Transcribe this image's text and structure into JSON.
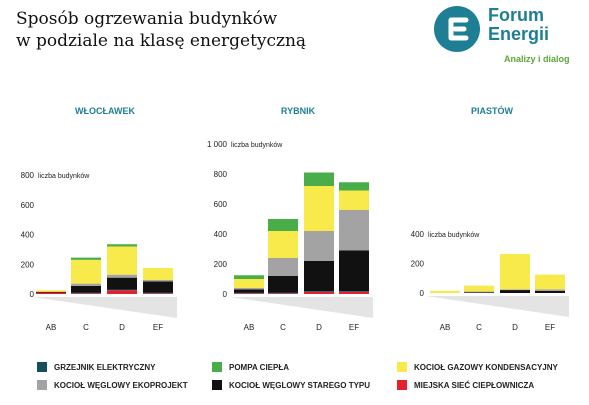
{
  "header": {
    "title_line1": "Sposób ogrzewania budynków",
    "title_line2": "w podziale na klasę energetyczną"
  },
  "logo": {
    "icon": "forum-energii-logo-icon",
    "name_line1": "Forum",
    "name_line2": "Energii",
    "tagline": "Analizy i dialog",
    "color": "#1e7f94",
    "tagline_color": "#5aa83a"
  },
  "chart_data": [
    {
      "type": "bar",
      "stacked": true,
      "title": "WŁOCŁAWEK",
      "ylabel": "liczba budynków",
      "ylim": [
        0,
        800
      ],
      "yticks": [
        0,
        200,
        400,
        600,
        800
      ],
      "ytick_labels": [
        "0",
        "200",
        "400",
        "600",
        "800"
      ],
      "categories": [
        "AB",
        "C",
        "D",
        "EF"
      ],
      "series": [
        {
          "name": "MIEJSKA SIEĆ CIEPŁOWNICZA",
          "color": "#e3202f",
          "values": [
            10,
            5,
            25,
            5
          ]
        },
        {
          "name": "GRZEJNIK ELEKTRYCZNY",
          "color": "#154f5c",
          "values": [
            0,
            5,
            5,
            5
          ]
        },
        {
          "name": "KOCIOŁ WĘGLOWY STAREGO TYPU",
          "color": "#111111",
          "values": [
            5,
            45,
            80,
            75
          ]
        },
        {
          "name": "KOCIOŁ WĘGLOWY EKOPROJEKT",
          "color": "#a3a3a3",
          "values": [
            0,
            15,
            20,
            10
          ]
        },
        {
          "name": "KOCIOŁ GAZOWY KONDENSACYJNY",
          "color": "#f7ea4a",
          "values": [
            10,
            160,
            190,
            80
          ]
        },
        {
          "name": "POMPA CIEPŁA",
          "color": "#49ae49",
          "values": [
            0,
            15,
            15,
            0
          ]
        }
      ]
    },
    {
      "type": "bar",
      "stacked": true,
      "title": "RYBNIK",
      "ylabel": "liczba budynków",
      "ylim": [
        0,
        1000
      ],
      "yticks": [
        0,
        200,
        400,
        600,
        800,
        1000
      ],
      "ytick_labels": [
        "0",
        "200",
        "400",
        "600",
        "800",
        "1 000"
      ],
      "categories": [
        "AB",
        "C",
        "D",
        "EF"
      ],
      "series": [
        {
          "name": "MIEJSKA SIEĆ CIEPŁOWNICZA",
          "color": "#e3202f",
          "values": [
            5,
            5,
            15,
            15
          ]
        },
        {
          "name": "GRZEJNIK ELEKTRYCZNY",
          "color": "#154f5c",
          "values": [
            5,
            5,
            5,
            5
          ]
        },
        {
          "name": "KOCIOŁ WĘGLOWY STAREGO TYPU",
          "color": "#111111",
          "values": [
            20,
            110,
            200,
            270
          ]
        },
        {
          "name": "KOCIOŁ WĘGLOWY EKOPROJEKT",
          "color": "#a3a3a3",
          "values": [
            10,
            120,
            200,
            270
          ]
        },
        {
          "name": "KOCIOŁ GAZOWY KONDENSACYJNY",
          "color": "#f7ea4a",
          "values": [
            60,
            180,
            300,
            130
          ]
        },
        {
          "name": "POMPA CIEPŁA",
          "color": "#49ae49",
          "values": [
            25,
            80,
            90,
            55
          ]
        }
      ]
    },
    {
      "type": "bar",
      "stacked": true,
      "title": "PIASTÓW",
      "ylabel": "liczba budynków",
      "ylim": [
        0,
        400
      ],
      "yticks": [
        0,
        200,
        400
      ],
      "ytick_labels": [
        "0",
        "200",
        "400"
      ],
      "categories": [
        "AB",
        "C",
        "D",
        "EF"
      ],
      "series": [
        {
          "name": "MIEJSKA SIEĆ CIEPŁOWNICZA",
          "color": "#e3202f",
          "values": [
            0,
            0,
            0,
            0
          ]
        },
        {
          "name": "GRZEJNIK ELEKTRYCZNY",
          "color": "#154f5c",
          "values": [
            0,
            0,
            0,
            0
          ]
        },
        {
          "name": "KOCIOŁ WĘGLOWY STAREGO TYPU",
          "color": "#111111",
          "values": [
            0,
            5,
            20,
            15
          ]
        },
        {
          "name": "KOCIOŁ WĘGLOWY EKOPROJEKT",
          "color": "#a3a3a3",
          "values": [
            0,
            5,
            5,
            10
          ]
        },
        {
          "name": "KOCIOŁ GAZOWY KONDENSACYJNY",
          "color": "#f7ea4a",
          "values": [
            15,
            40,
            240,
            100
          ]
        },
        {
          "name": "POMPA CIEPŁA",
          "color": "#49ae49",
          "values": [
            0,
            0,
            0,
            0
          ]
        }
      ]
    }
  ],
  "legend": {
    "items": [
      {
        "label": "GRZEJNIK ELEKTRYCZNY",
        "color": "#154f5c"
      },
      {
        "label": "POMPA CIEPŁA",
        "color": "#49ae49"
      },
      {
        "label": "KOCIOŁ GAZOWY KONDENSACYJNY",
        "color": "#f7ea4a"
      },
      {
        "label": "KOCIOŁ WĘGLOWY EKOPROJEKT",
        "color": "#a3a3a3"
      },
      {
        "label": "KOCIOŁ WĘGLOWY STAREGO TYPU",
        "color": "#111111"
      },
      {
        "label": "MIEJSKA SIEĆ CIEPŁOWNICZA",
        "color": "#e3202f"
      }
    ]
  }
}
